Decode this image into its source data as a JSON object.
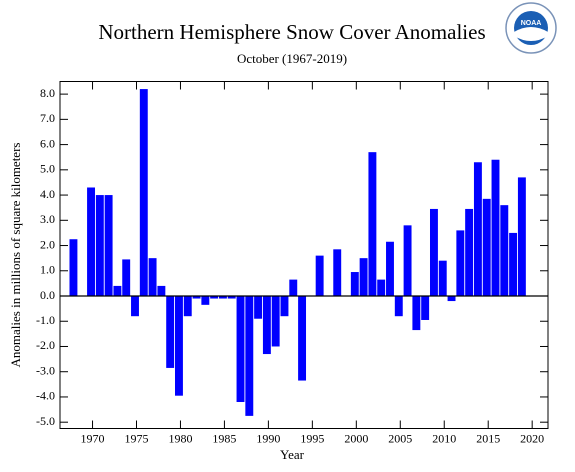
{
  "chart_data": {
    "type": "bar",
    "title": "Northern Hemisphere Snow Cover Anomalies",
    "subtitle": "October (1967-2019)",
    "logo": "NOAA",
    "x_label": "Year",
    "y_label": "Anomalies in millions of square kilometers",
    "color": "#0000ff",
    "x": [
      1967,
      1968,
      1969,
      1970,
      1971,
      1972,
      1973,
      1974,
      1975,
      1976,
      1977,
      1978,
      1979,
      1980,
      1981,
      1982,
      1983,
      1984,
      1985,
      1986,
      1987,
      1988,
      1989,
      1990,
      1991,
      1992,
      1993,
      1994,
      1995,
      1996,
      1997,
      1998,
      1999,
      2000,
      2001,
      2002,
      2003,
      2004,
      2005,
      2006,
      2007,
      2008,
      2009,
      2010,
      2011,
      2012,
      2013,
      2014,
      2015,
      2016,
      2017,
      2018,
      2019
    ],
    "values": [
      null,
      2.25,
      null,
      4.3,
      4.0,
      4.0,
      0.4,
      1.45,
      -0.8,
      8.2,
      1.5,
      0.4,
      -2.85,
      -3.95,
      -0.8,
      -0.1,
      -0.35,
      -0.1,
      -0.1,
      -0.1,
      -4.2,
      -4.75,
      -0.9,
      -2.3,
      -2.0,
      -0.8,
      0.65,
      -3.35,
      0,
      1.6,
      0,
      1.85,
      0,
      0.95,
      1.5,
      5.7,
      0.65,
      2.15,
      -0.8,
      2.8,
      -1.35,
      -0.95,
      3.45,
      1.4,
      -0.2,
      2.6,
      3.45,
      5.3,
      3.85,
      5.4,
      3.6,
      2.5,
      4.7
    ],
    "xlim": [
      1966.3,
      2021.8
    ],
    "xticks": [
      1970,
      1975,
      1980,
      1985,
      1990,
      1995,
      2000,
      2005,
      2010,
      2015,
      2020
    ],
    "ylim": [
      -5.25,
      8.5
    ],
    "yticks": [
      {
        "value": -5,
        "label": "-5.0"
      },
      {
        "value": -4,
        "label": "-4.0"
      },
      {
        "value": -3,
        "label": "-3.0"
      },
      {
        "value": -2,
        "label": "-2.0"
      },
      {
        "value": -1,
        "label": "-1.0"
      },
      {
        "value": 0,
        "label": "0.0"
      },
      {
        "value": 1,
        "label": "1.0"
      },
      {
        "value": 2,
        "label": "2.0"
      },
      {
        "value": 3,
        "label": "3.0"
      },
      {
        "value": 4,
        "label": "4.0"
      },
      {
        "value": 5,
        "label": "5.0"
      },
      {
        "value": 6,
        "label": "6.0"
      },
      {
        "value": 7,
        "label": "7.0"
      },
      {
        "value": 8,
        "label": "8.0"
      }
    ]
  }
}
